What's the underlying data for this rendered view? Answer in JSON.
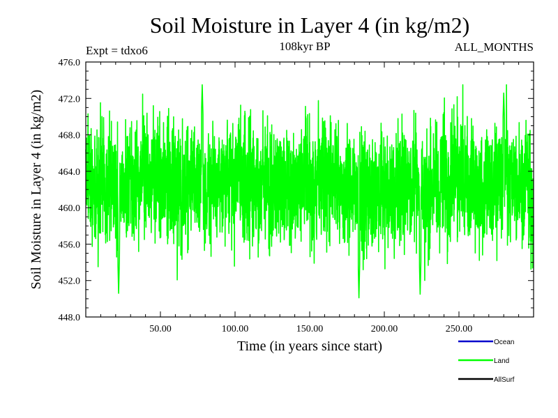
{
  "chart_data": {
    "type": "line",
    "title": "Soil Moisture in Layer 4 (in kg/m2)",
    "subtitle_left": "Expt = tdxo6",
    "subtitle_center": "108kyr BP",
    "subtitle_right": "ALL_MONTHS",
    "xlabel": "Time (in years since start)",
    "ylabel": "Soil Moisture in Layer 4 (in kg/m2)",
    "xlim": [
      0,
      300
    ],
    "ylim": [
      448.0,
      476.0
    ],
    "x_ticks": [
      50,
      100,
      150,
      200,
      250
    ],
    "x_tick_labels": [
      "50.00",
      "100.00",
      "150.00",
      "200.00",
      "250.00"
    ],
    "y_ticks": [
      448,
      452,
      456,
      460,
      464,
      468,
      472,
      476
    ],
    "y_tick_labels": [
      "448.0",
      "452.0",
      "456.0",
      "460.0",
      "464.0",
      "468.0",
      "472.0",
      "476.0"
    ],
    "grid": false,
    "legend_position": "bottom-right",
    "legend": [
      {
        "name": "Ocean",
        "color": "#0000cc"
      },
      {
        "name": "Land",
        "color": "#00ff00"
      },
      {
        "name": "AllSurf",
        "color": "#000000"
      }
    ],
    "series": [
      {
        "name": "Land",
        "color": "#00ff00",
        "x_start": 0,
        "x_step": 0.083333,
        "n_points": 3600,
        "mean": 462.5,
        "min": 450.1,
        "max": 473.5,
        "extremes": [
          {
            "x": 22,
            "y": 450.6
          },
          {
            "x": 78,
            "y": 473.5
          },
          {
            "x": 183,
            "y": 450.1
          },
          {
            "x": 224,
            "y": 450.5
          },
          {
            "x": 280,
            "y": 472.6
          }
        ]
      }
    ]
  }
}
